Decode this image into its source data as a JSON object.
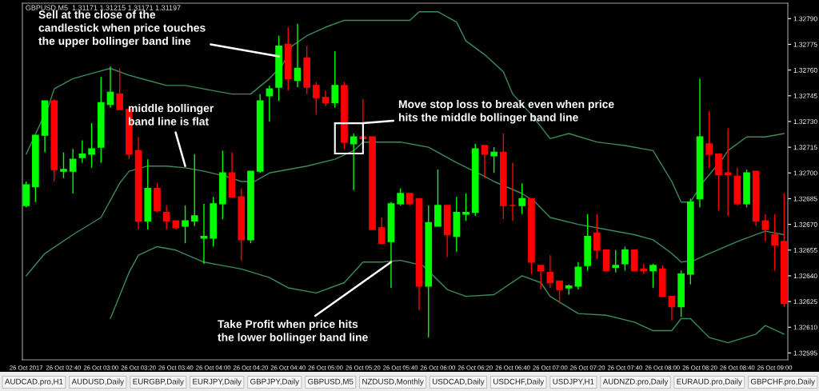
{
  "chart_data": {
    "type": "candlestick",
    "title": "GBPUSD,M5  1.31171 1.31215 1.31171 1.31197",
    "x": [
      "2017-10-26T02:20",
      "2017-10-26T02:25",
      "2017-10-26T02:30",
      "2017-10-26T02:35",
      "2017-10-26T02:40",
      "2017-10-26T02:45",
      "2017-10-26T02:50",
      "2017-10-26T02:55",
      "2017-10-26T03:00",
      "2017-10-26T03:05",
      "2017-10-26T03:10",
      "2017-10-26T03:15",
      "2017-10-26T03:20",
      "2017-10-26T03:25",
      "2017-10-26T03:30",
      "2017-10-26T03:35",
      "2017-10-26T03:40",
      "2017-10-26T03:45",
      "2017-10-26T03:50",
      "2017-10-26T03:55",
      "2017-10-26T04:00",
      "2017-10-26T04:05",
      "2017-10-26T04:10",
      "2017-10-26T04:15",
      "2017-10-26T04:20",
      "2017-10-26T04:25",
      "2017-10-26T04:30",
      "2017-10-26T04:35",
      "2017-10-26T04:40",
      "2017-10-26T04:45",
      "2017-10-26T04:50",
      "2017-10-26T04:55",
      "2017-10-26T05:00",
      "2017-10-26T05:05",
      "2017-10-26T05:10",
      "2017-10-26T05:15",
      "2017-10-26T05:20",
      "2017-10-26T05:25",
      "2017-10-26T05:30",
      "2017-10-26T05:35",
      "2017-10-26T05:40",
      "2017-10-26T05:45",
      "2017-10-26T05:50",
      "2017-10-26T05:55",
      "2017-10-26T06:00",
      "2017-10-26T06:05",
      "2017-10-26T06:10",
      "2017-10-26T06:15",
      "2017-10-26T06:20",
      "2017-10-26T06:25",
      "2017-10-26T06:30",
      "2017-10-26T06:35",
      "2017-10-26T06:40",
      "2017-10-26T06:45",
      "2017-10-26T06:50",
      "2017-10-26T06:55",
      "2017-10-26T07:00",
      "2017-10-26T07:05",
      "2017-10-26T07:10",
      "2017-10-26T07:15",
      "2017-10-26T07:20",
      "2017-10-26T07:25",
      "2017-10-26T07:30",
      "2017-10-26T07:35",
      "2017-10-26T07:40",
      "2017-10-26T07:45",
      "2017-10-26T07:50",
      "2017-10-26T07:55",
      "2017-10-26T08:00",
      "2017-10-26T08:05",
      "2017-10-26T08:10",
      "2017-10-26T08:15",
      "2017-10-26T08:20",
      "2017-10-26T08:25",
      "2017-10-26T08:30",
      "2017-10-26T08:35",
      "2017-10-26T08:40",
      "2017-10-26T08:45",
      "2017-10-26T08:50",
      "2017-10-26T08:55",
      "2017-10-26T09:00",
      "2017-10-26T09:05"
    ],
    "ohlc": [
      [
        1.32681,
        1.32695,
        1.3268,
        1.32693
      ],
      [
        1.32692,
        1.32722,
        1.32683,
        1.32722
      ],
      [
        1.32722,
        1.32742,
        1.32712,
        1.32742
      ],
      [
        1.32742,
        1.32743,
        1.32695,
        1.32702
      ],
      [
        1.32701,
        1.32712,
        1.32697,
        1.32702
      ],
      [
        1.32701,
        1.32714,
        1.32688,
        1.32708
      ],
      [
        1.32709,
        1.32719,
        1.32706,
        1.32711
      ],
      [
        1.32711,
        1.32729,
        1.32703,
        1.32714
      ],
      [
        1.32715,
        1.32756,
        1.32706,
        1.32741
      ],
      [
        1.3274,
        1.32762,
        1.32738,
        1.32747
      ],
      [
        1.32746,
        1.32761,
        1.32737,
        1.32737
      ],
      [
        1.32737,
        1.32737,
        1.32708,
        1.32711
      ],
      [
        1.32713,
        1.32721,
        1.32667,
        1.32672
      ],
      [
        1.32672,
        1.32708,
        1.32667,
        1.32691
      ],
      [
        1.32691,
        1.32694,
        1.32677,
        1.32678
      ],
      [
        1.32677,
        1.32681,
        1.32667,
        1.32672
      ],
      [
        1.32672,
        1.32672,
        1.32667,
        1.32668
      ],
      [
        1.32669,
        1.32681,
        1.32659,
        1.32672
      ],
      [
        1.32672,
        1.32711,
        1.32669,
        1.32675
      ],
      [
        1.32662,
        1.32682,
        1.32647,
        1.32663
      ],
      [
        1.32662,
        1.32686,
        1.32657,
        1.32682
      ],
      [
        1.32682,
        1.32713,
        1.32673,
        1.327
      ],
      [
        1.327,
        1.32712,
        1.32686,
        1.32686
      ],
      [
        1.32686,
        1.32691,
        1.32649,
        1.32661
      ],
      [
        1.32661,
        1.32701,
        1.32659,
        1.32701
      ],
      [
        1.32701,
        1.32746,
        1.327,
        1.32742
      ],
      [
        1.32745,
        1.32751,
        1.3273,
        1.32749
      ],
      [
        1.3275,
        1.3278,
        1.32742,
        1.32774
      ],
      [
        1.32775,
        1.32785,
        1.32748,
        1.32755
      ],
      [
        1.32754,
        1.32787,
        1.3275,
        1.32761
      ],
      [
        1.32767,
        1.32774,
        1.32746,
        1.3275
      ],
      [
        1.32751,
        1.32753,
        1.32734,
        1.32744
      ],
      [
        1.32744,
        1.32748,
        1.32739,
        1.32741
      ],
      [
        1.32741,
        1.32771,
        1.32738,
        1.32751
      ],
      [
        1.32751,
        1.32753,
        1.32714,
        1.32718
      ],
      [
        1.32717,
        1.32723,
        1.3269,
        1.32721
      ],
      [
        1.32721,
        1.32743,
        1.3272,
        1.3272
      ],
      [
        1.32721,
        1.32721,
        1.32667,
        1.32667
      ],
      [
        1.32668,
        1.32674,
        1.32659,
        1.32659
      ],
      [
        1.3266,
        1.32683,
        1.32633,
        1.32682
      ],
      [
        1.32682,
        1.32691,
        1.32681,
        1.32688
      ],
      [
        1.32688,
        1.32688,
        1.32681,
        1.32682
      ],
      [
        1.32685,
        1.32685,
        1.3262,
        1.32634
      ],
      [
        1.32634,
        1.32681,
        1.32604,
        1.32671
      ],
      [
        1.32669,
        1.32702,
        1.32669,
        1.32681
      ],
      [
        1.32681,
        1.32681,
        1.32651,
        1.32664
      ],
      [
        1.32663,
        1.32686,
        1.32654,
        1.32677
      ],
      [
        1.32676,
        1.32688,
        1.32672,
        1.32677
      ],
      [
        1.32677,
        1.32717,
        1.32675,
        1.32714
      ],
      [
        1.32716,
        1.32716,
        1.32697,
        1.32711
      ],
      [
        1.3271,
        1.32715,
        1.327,
        1.32712
      ],
      [
        1.32712,
        1.32723,
        1.32673,
        1.32681
      ],
      [
        1.32681,
        1.32706,
        1.32672,
        1.32681
      ],
      [
        1.32681,
        1.32694,
        1.32676,
        1.32685
      ],
      [
        1.32685,
        1.32685,
        1.32641,
        1.32648
      ],
      [
        1.32646,
        1.32646,
        1.32632,
        1.32643
      ],
      [
        1.32642,
        1.32652,
        1.32633,
        1.32636
      ],
      [
        1.32637,
        1.32637,
        1.32624,
        1.32632
      ],
      [
        1.32633,
        1.32635,
        1.32629,
        1.32634
      ],
      [
        1.32634,
        1.32648,
        1.32632,
        1.32645
      ],
      [
        1.32646,
        1.32676,
        1.32643,
        1.32663
      ],
      [
        1.32665,
        1.32676,
        1.3265,
        1.32655
      ],
      [
        1.32655,
        1.32655,
        1.32643,
        1.32643
      ],
      [
        1.32645,
        1.32655,
        1.32642,
        1.32646
      ],
      [
        1.32647,
        1.32657,
        1.32643,
        1.32655
      ],
      [
        1.32655,
        1.32655,
        1.32643,
        1.32643
      ],
      [
        1.32644,
        1.32647,
        1.32641,
        1.32643
      ],
      [
        1.32643,
        1.32647,
        1.32633,
        1.32646
      ],
      [
        1.32644,
        1.32646,
        1.32628,
        1.32628
      ],
      [
        1.32628,
        1.32628,
        1.32614,
        1.32622
      ],
      [
        1.32622,
        1.32643,
        1.32616,
        1.32641
      ],
      [
        1.32641,
        1.32685,
        1.32635,
        1.32683
      ],
      [
        1.32685,
        1.32755,
        1.3268,
        1.32721
      ],
      [
        1.32717,
        1.32736,
        1.32703,
        1.32711
      ],
      [
        1.32711,
        1.32711,
        1.32678,
        1.32699
      ],
      [
        1.327,
        1.32726,
        1.32675,
        1.32699
      ],
      [
        1.32698,
        1.32703,
        1.32681,
        1.32682
      ],
      [
        1.32682,
        1.32702,
        1.3268,
        1.327
      ],
      [
        1.32701,
        1.32701,
        1.32669,
        1.32672
      ],
      [
        1.32672,
        1.32676,
        1.3266,
        1.32667
      ],
      [
        1.32664,
        1.32676,
        1.32643,
        1.32658
      ],
      [
        1.3266,
        1.32688,
        1.32622,
        1.32624
      ]
    ],
    "colors": [
      "#00ff00",
      "#00ff00",
      "#00ff00",
      "#ff0000",
      "#00ff00",
      "#00ff00",
      "#00ff00",
      "#00ff00",
      "#00ff00",
      "#00ff00",
      "#ff0000",
      "#ff0000",
      "#ff0000",
      "#00ff00",
      "#ff0000",
      "#ff0000",
      "#ff0000",
      "#00ff00",
      "#00ff00",
      "#00ff00",
      "#00ff00",
      "#00ff00",
      "#ff0000",
      "#ff0000",
      "#00ff00",
      "#00ff00",
      "#00ff00",
      "#00ff00",
      "#ff0000",
      "#00ff00",
      "#ff0000",
      "#ff0000",
      "#ff0000",
      "#00ff00",
      "#ff0000",
      "#00ff00",
      "#ff0000",
      "#ff0000",
      "#ff0000",
      "#00ff00",
      "#00ff00",
      "#ff0000",
      "#ff0000",
      "#00ff00",
      "#00ff00",
      "#ff0000",
      "#00ff00",
      "#00ff00",
      "#00ff00",
      "#ff0000",
      "#00ff00",
      "#ff0000",
      "#ff0000",
      "#00ff00",
      "#ff0000",
      "#ff0000",
      "#ff0000",
      "#ff0000",
      "#00ff00",
      "#00ff00",
      "#00ff00",
      "#ff0000",
      "#ff0000",
      "#00ff00",
      "#00ff00",
      "#ff0000",
      "#ff0000",
      "#00ff00",
      "#ff0000",
      "#ff0000",
      "#00ff00",
      "#00ff00",
      "#00ff00",
      "#ff0000",
      "#ff0000",
      "#ff0000",
      "#ff0000",
      "#00ff00",
      "#ff0000",
      "#ff0000",
      "#ff0000",
      "#ff0000"
    ],
    "series": [
      {
        "type": "line",
        "color": "#3c8c5a",
        "x": [
          "2017-10-26T02:20",
          "2017-10-26T02:32",
          "2017-10-26T02:35",
          "2017-10-26T02:45",
          "2017-10-26T02:55",
          "2017-10-26T03:05",
          "2017-10-26T03:15",
          "2017-10-26T03:25",
          "2017-10-26T03:35",
          "2017-10-26T03:45",
          "2017-10-26T04:00",
          "2017-10-26T04:10",
          "2017-10-26T04:20",
          "2017-10-26T04:30",
          "2017-10-26T04:37",
          "2017-10-26T04:42",
          "2017-10-26T04:50",
          "2017-10-26T05:00",
          "2017-10-26T05:10",
          "2017-10-26T05:30",
          "2017-10-26T05:45",
          "2017-10-26T05:50",
          "2017-10-26T06:00",
          "2017-10-26T06:10",
          "2017-10-26T06:15",
          "2017-10-26T06:25",
          "2017-10-26T06:35",
          "2017-10-26T06:40",
          "2017-10-26T06:50",
          "2017-10-26T07:00",
          "2017-10-26T07:10",
          "2017-10-26T07:25",
          "2017-10-26T07:40",
          "2017-10-26T07:55",
          "2017-10-26T08:05",
          "2017-10-26T08:10",
          "2017-10-26T08:15",
          "2017-10-26T08:22",
          "2017-10-26T08:32",
          "2017-10-26T08:35",
          "2017-10-26T08:45",
          "2017-10-26T08:55",
          "2017-10-26T09:05"
        ],
        "values": [
          1.32711,
          1.32739,
          1.32749,
          1.32755,
          1.32758,
          1.32761,
          1.32757,
          1.32754,
          1.32751,
          1.32751,
          1.32748,
          1.32746,
          1.32746,
          1.32755,
          1.32763,
          1.32774,
          1.3278,
          1.32785,
          1.32789,
          1.32789,
          1.32789,
          1.32794,
          1.32794,
          1.32788,
          1.32777,
          1.32769,
          1.32759,
          1.32746,
          1.32734,
          1.3272,
          1.32723,
          1.32718,
          1.32716,
          1.32713,
          1.32695,
          1.32683,
          1.32683,
          1.32695,
          1.32708,
          1.32713,
          1.32721,
          1.32721,
          1.32723
        ]
      },
      {
        "type": "line",
        "color": "#3c8c5a",
        "x": [
          "2017-10-26T02:20",
          "2017-10-26T02:30",
          "2017-10-26T02:45",
          "2017-10-26T03:00",
          "2017-10-26T03:10",
          "2017-10-26T03:15",
          "2017-10-26T03:25",
          "2017-10-26T03:35",
          "2017-10-26T03:45",
          "2017-10-26T03:55",
          "2017-10-26T04:07",
          "2017-10-26T04:15",
          "2017-10-26T04:22",
          "2017-10-26T04:30",
          "2017-10-26T04:40",
          "2017-10-26T04:50",
          "2017-10-26T05:05",
          "2017-10-26T05:15",
          "2017-10-26T05:20",
          "2017-10-26T05:30",
          "2017-10-26T05:40",
          "2017-10-26T05:55",
          "2017-10-26T06:10",
          "2017-10-26T06:25",
          "2017-10-26T06:30",
          "2017-10-26T06:45",
          "2017-10-26T06:52",
          "2017-10-26T07:00",
          "2017-10-26T07:15",
          "2017-10-26T07:30",
          "2017-10-26T07:45",
          "2017-10-26T07:55",
          "2017-10-26T08:05",
          "2017-10-26T08:10",
          "2017-10-26T08:17",
          "2017-10-26T08:25",
          "2017-10-26T08:40",
          "2017-10-26T08:50",
          "2017-10-26T08:55",
          "2017-10-26T09:05"
        ],
        "values": [
          1.3264,
          1.32653,
          1.32664,
          1.32674,
          1.32694,
          1.32701,
          1.32704,
          1.32704,
          1.32703,
          1.32701,
          1.32698,
          1.32695,
          1.32695,
          1.327,
          1.32702,
          1.32704,
          1.32708,
          1.32713,
          1.32718,
          1.32718,
          1.32718,
          1.32715,
          1.32706,
          1.32698,
          1.32695,
          1.32688,
          1.32683,
          1.32674,
          1.3267,
          1.32667,
          1.32664,
          1.32661,
          1.32653,
          1.32648,
          1.32649,
          1.32653,
          1.3266,
          1.32664,
          1.32666,
          1.32664
        ]
      },
      {
        "type": "line",
        "color": "#3c8c5a",
        "x": [
          "2017-10-26T03:05",
          "2017-10-26T03:15",
          "2017-10-26T03:20",
          "2017-10-26T03:30",
          "2017-10-26T03:40",
          "2017-10-26T03:55",
          "2017-10-26T04:05",
          "2017-10-26T04:15",
          "2017-10-26T04:30",
          "2017-10-26T04:40",
          "2017-10-26T04:55",
          "2017-10-26T05:10",
          "2017-10-26T05:20",
          "2017-10-26T05:30",
          "2017-10-26T05:40",
          "2017-10-26T05:52",
          "2017-10-26T06:05",
          "2017-10-26T06:15",
          "2017-10-26T06:30",
          "2017-10-26T06:45",
          "2017-10-26T06:55",
          "2017-10-26T07:00",
          "2017-10-26T07:15",
          "2017-10-26T07:30",
          "2017-10-26T07:45",
          "2017-10-26T07:55",
          "2017-10-26T08:05",
          "2017-10-26T08:10",
          "2017-10-26T08:15",
          "2017-10-26T08:25",
          "2017-10-26T08:35",
          "2017-10-26T08:50",
          "2017-10-26T08:55",
          "2017-10-26T09:05"
        ],
        "values": [
          1.32615,
          1.32642,
          1.32652,
          1.32657,
          1.32655,
          1.32648,
          1.32646,
          1.32644,
          1.32639,
          1.32633,
          1.3263,
          1.32636,
          1.32648,
          1.32648,
          1.32649,
          1.32646,
          1.32632,
          1.32628,
          1.32629,
          1.3264,
          1.32636,
          1.32628,
          1.32618,
          1.32617,
          1.32613,
          1.32608,
          1.32608,
          1.32615,
          1.32615,
          1.32604,
          1.32601,
          1.32606,
          1.32611,
          1.32606
        ]
      }
    ],
    "xlim": [
      "2017-10-26T02:18",
      "2017-10-26T09:07"
    ],
    "xticks": [
      {
        "value": "2017-10-26T02:20",
        "label": "26 Oct 2017"
      },
      {
        "value": "2017-10-26T02:40",
        "label": "26 Oct 02:40"
      },
      {
        "value": "2017-10-26T03:00",
        "label": "26 Oct 03:00"
      },
      {
        "value": "2017-10-26T03:20",
        "label": "26 Oct 03:20"
      },
      {
        "value": "2017-10-26T03:40",
        "label": "26 Oct 03:40"
      },
      {
        "value": "2017-10-26T04:00",
        "label": "26 Oct 04:00"
      },
      {
        "value": "2017-10-26T04:20",
        "label": "26 Oct 04:20"
      },
      {
        "value": "2017-10-26T04:40",
        "label": "26 Oct 04:40"
      },
      {
        "value": "2017-10-26T05:00",
        "label": "26 Oct 05:00"
      },
      {
        "value": "2017-10-26T05:20",
        "label": "26 Oct 05:20"
      },
      {
        "value": "2017-10-26T05:40",
        "label": "26 Oct 05:40"
      },
      {
        "value": "2017-10-26T06:00",
        "label": "26 Oct 06:00"
      },
      {
        "value": "2017-10-26T06:20",
        "label": "26 Oct 06:20"
      },
      {
        "value": "2017-10-26T06:40",
        "label": "26 Oct 06:40"
      },
      {
        "value": "2017-10-26T07:00",
        "label": "26 Oct 07:00"
      },
      {
        "value": "2017-10-26T07:20",
        "label": "26 Oct 07:20"
      },
      {
        "value": "2017-10-26T07:40",
        "label": "26 Oct 07:40"
      },
      {
        "value": "2017-10-26T08:00",
        "label": "26 Oct 08:00"
      },
      {
        "value": "2017-10-26T08:20",
        "label": "26 Oct 08:20"
      },
      {
        "value": "2017-10-26T08:40",
        "label": "26 Oct 08:40"
      },
      {
        "value": "2017-10-26T09:00",
        "label": "26 Oct 09:00"
      }
    ],
    "ylim": [
      1.32591,
      1.32799
    ],
    "yticks": [
      1.32595,
      {
        "value": 1.3261,
        "label": "1.32610"
      },
      1.32625,
      {
        "value": 1.3264,
        "label": "1.32640"
      },
      1.32655,
      {
        "value": 1.3267,
        "label": "1.32670"
      },
      1.32685,
      {
        "value": 1.327,
        "label": "1.32700"
      },
      1.32715,
      {
        "value": 1.3273,
        "label": "1.32730"
      },
      1.32745,
      {
        "value": 1.3276,
        "label": "1.32760"
      },
      1.32775,
      {
        "value": 1.3279,
        "label": "1.32790"
      }
    ],
    "annotations": [
      {
        "text": "Sell at the close of the\ncandlestick when price touches\nthe upper bollinger band line",
        "x": "2017-10-26T04:35",
        "y": 1.32768
      },
      {
        "text": "middle bollinger\nband line is flat",
        "x": "2017-10-26T03:45",
        "y": 1.32704
      },
      {
        "text": "Move stop loss to break even when price\nhits the middle bollinger band line",
        "x": "2017-10-26T05:20",
        "y": 1.32729
      },
      {
        "text": "Take Profit when price hits\nthe lower bollinger band line",
        "x": "2017-10-26T05:35",
        "y": 1.32648
      },
      "AUDCAD.pro,H1",
      "AUDUSD,Daily",
      "EURGBP,Daily",
      "EURJPY,Daily",
      "GBPJPY,Daily",
      "GBPUSD,M5",
      "NZDUSD,Monthly",
      "USDCAD,Daily",
      "USDCHF,Daily",
      "USDJPY,H1",
      "AUDNZD.pro,Daily",
      "EURAUD.pro,Daily",
      "GBPCHF.pro,Daily"
    ]
  }
}
